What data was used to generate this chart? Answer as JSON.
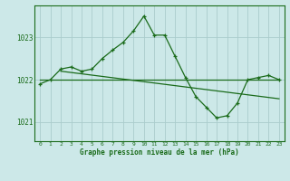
{
  "title": "Graphe pression niveau de la mer (hPa)",
  "bg_color": "#cce8e8",
  "grid_color": "#aacccc",
  "line_color": "#1a6b1a",
  "xlim": [
    -0.5,
    23.5
  ],
  "ylim": [
    1020.55,
    1023.75
  ],
  "yticks": [
    1021,
    1022,
    1023
  ],
  "xticks": [
    0,
    1,
    2,
    3,
    4,
    5,
    6,
    7,
    8,
    9,
    10,
    11,
    12,
    13,
    14,
    15,
    16,
    17,
    18,
    19,
    20,
    21,
    22,
    23
  ],
  "series1_x": [
    0,
    1,
    2,
    3,
    4,
    5,
    6,
    7,
    8,
    9,
    10,
    11,
    12,
    13,
    14,
    15,
    16,
    17,
    18,
    19,
    20,
    21,
    22,
    23
  ],
  "series1_y": [
    1021.9,
    1022.0,
    1022.25,
    1022.3,
    1022.2,
    1022.25,
    1022.5,
    1022.7,
    1022.88,
    1023.15,
    1023.5,
    1023.05,
    1023.05,
    1022.55,
    1022.05,
    1021.6,
    1021.35,
    1021.1,
    1021.15,
    1021.45,
    1022.0,
    1022.05,
    1022.1,
    1022.0
  ],
  "series2_x": [
    0,
    23
  ],
  "series2_y": [
    1022.0,
    1022.0
  ],
  "series3_x": [
    2,
    23
  ],
  "series3_y": [
    1022.2,
    1021.55
  ]
}
